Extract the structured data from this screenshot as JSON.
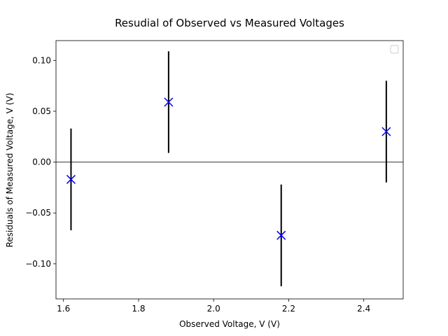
{
  "chart_data": {
    "type": "scatter",
    "title": "Resudial of Observed vs Measured Voltages",
    "xlabel": "Observed Voltage, V (V)",
    "ylabel": "Residuals of Measured Voltage, V (V)",
    "xlim": [
      1.58,
      2.505
    ],
    "ylim": [
      -0.1345,
      0.1195
    ],
    "xticks": [
      {
        "value": 1.6,
        "label": "1.6"
      },
      {
        "value": 1.8,
        "label": "1.8"
      },
      {
        "value": 2.0,
        "label": "2.0"
      },
      {
        "value": 2.2,
        "label": "2.2"
      },
      {
        "value": 2.4,
        "label": "2.4"
      }
    ],
    "yticks": [
      {
        "value": 0.1,
        "label": "0.10"
      },
      {
        "value": 0.05,
        "label": "0.05"
      },
      {
        "value": 0.0,
        "label": "0.00"
      },
      {
        "value": -0.05,
        "label": "−0.05"
      },
      {
        "value": -0.1,
        "label": "−0.10"
      }
    ],
    "reference_line_y": 0,
    "grid": false,
    "legend": {
      "placement": "top-right",
      "entries": []
    },
    "marker_color": "#0000ff",
    "errorbar_color": "#000000",
    "series": [
      {
        "marker": "x",
        "points": [
          {
            "x": 1.62,
            "y": -0.017,
            "yerr": 0.05
          },
          {
            "x": 1.88,
            "y": 0.059,
            "yerr": 0.05
          },
          {
            "x": 2.18,
            "y": -0.072,
            "yerr": 0.05
          },
          {
            "x": 2.46,
            "y": 0.03,
            "yerr": 0.05
          }
        ]
      }
    ]
  }
}
